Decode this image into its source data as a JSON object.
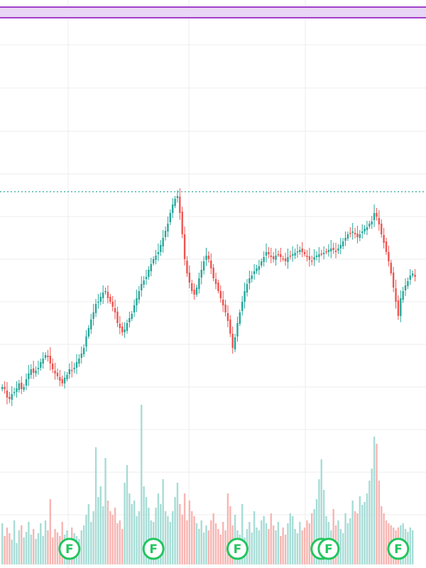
{
  "chart_data": {
    "type": "candlestick",
    "grid": true,
    "band": {
      "fill": "#e9d5f5",
      "stroke": "#a23fc9"
    },
    "reference_line": {
      "color": "#26a69a",
      "style": "dotted",
      "level": 270
    },
    "colors": {
      "up": "#26a69a",
      "down": "#ef5350",
      "vol_up": "#a7dcd6",
      "vol_down": "#f7b5b2",
      "grid": "#ececec",
      "marker": "#22c55e"
    },
    "marker_label": "F",
    "markers": [
      {
        "bar": 28
      },
      {
        "bar": 63
      },
      {
        "bar": 98
      },
      {
        "bar": 133
      },
      {
        "bar": 136
      },
      {
        "bar": 165
      }
    ],
    "price": [
      545,
      548,
      560,
      562,
      555,
      552,
      547,
      540,
      548,
      545,
      534,
      526,
      520,
      525,
      522,
      518,
      510,
      505,
      500,
      503,
      512,
      520,
      526,
      530,
      536,
      540,
      532,
      528,
      520,
      522,
      518,
      510,
      505,
      498,
      490,
      474,
      462,
      450,
      440,
      428,
      425,
      418,
      412,
      410,
      420,
      425,
      432,
      440,
      455,
      462,
      468,
      464,
      455,
      448,
      442,
      430,
      420,
      410,
      400,
      395,
      390,
      380,
      372,
      365,
      360,
      355,
      345,
      335,
      325,
      315,
      300,
      288,
      280,
      276,
      300,
      330,
      365,
      385,
      398,
      410,
      415,
      405,
      392,
      380,
      368,
      360,
      365,
      378,
      392,
      400,
      410,
      420,
      430,
      440,
      452,
      470,
      490,
      475,
      455,
      440,
      425,
      410,
      400,
      392,
      388,
      382,
      378,
      375,
      368,
      362,
      355,
      358,
      362,
      365,
      360,
      358,
      362,
      365,
      368,
      362,
      360,
      358,
      356,
      354,
      352,
      355,
      358,
      362,
      366,
      368,
      362,
      360,
      358,
      357,
      356,
      355,
      352,
      350,
      352,
      355,
      350,
      345,
      340,
      335,
      330,
      328,
      326,
      330,
      334,
      330,
      326,
      322,
      320,
      315,
      312,
      300,
      305,
      316,
      330,
      342,
      355,
      368,
      385,
      405,
      425,
      445,
      420,
      410,
      402,
      396,
      388,
      385,
      390
    ],
    "volume": [
      58,
      40,
      52,
      44,
      35,
      62,
      30,
      48,
      55,
      38,
      46,
      60,
      42,
      50,
      36,
      44,
      58,
      40,
      62,
      48,
      92,
      38,
      50,
      45,
      40,
      60,
      42,
      48,
      35,
      52,
      44,
      40,
      36,
      48,
      55,
      70,
      85,
      60,
      75,
      165,
      95,
      110,
      82,
      150,
      90,
      75,
      70,
      80,
      58,
      62,
      50,
      115,
      140,
      100,
      85,
      90,
      68,
      75,
      225,
      110,
      95,
      80,
      62,
      60,
      80,
      100,
      85,
      120,
      75,
      68,
      60,
      75,
      95,
      115,
      85,
      70,
      100,
      62,
      90,
      75,
      68,
      58,
      50,
      62,
      45,
      55,
      48,
      62,
      72,
      58,
      50,
      42,
      60,
      48,
      100,
      82,
      55,
      70,
      48,
      42,
      85,
      38,
      50,
      60,
      45,
      75,
      52,
      48,
      62,
      68,
      58,
      50,
      72,
      55,
      48,
      60,
      40,
      52,
      42,
      58,
      72,
      68,
      50,
      44,
      60,
      48,
      52,
      62,
      58,
      72,
      78,
      92,
      120,
      148,
      105,
      68,
      60,
      48,
      78,
      55,
      62,
      50,
      44,
      72,
      58,
      65,
      90,
      75,
      72,
      96,
      84,
      88,
      100,
      118,
      135,
      180,
      170,
      118,
      82,
      72,
      62,
      58,
      55,
      52,
      48,
      52,
      55,
      58,
      50,
      46,
      52,
      48
    ]
  }
}
